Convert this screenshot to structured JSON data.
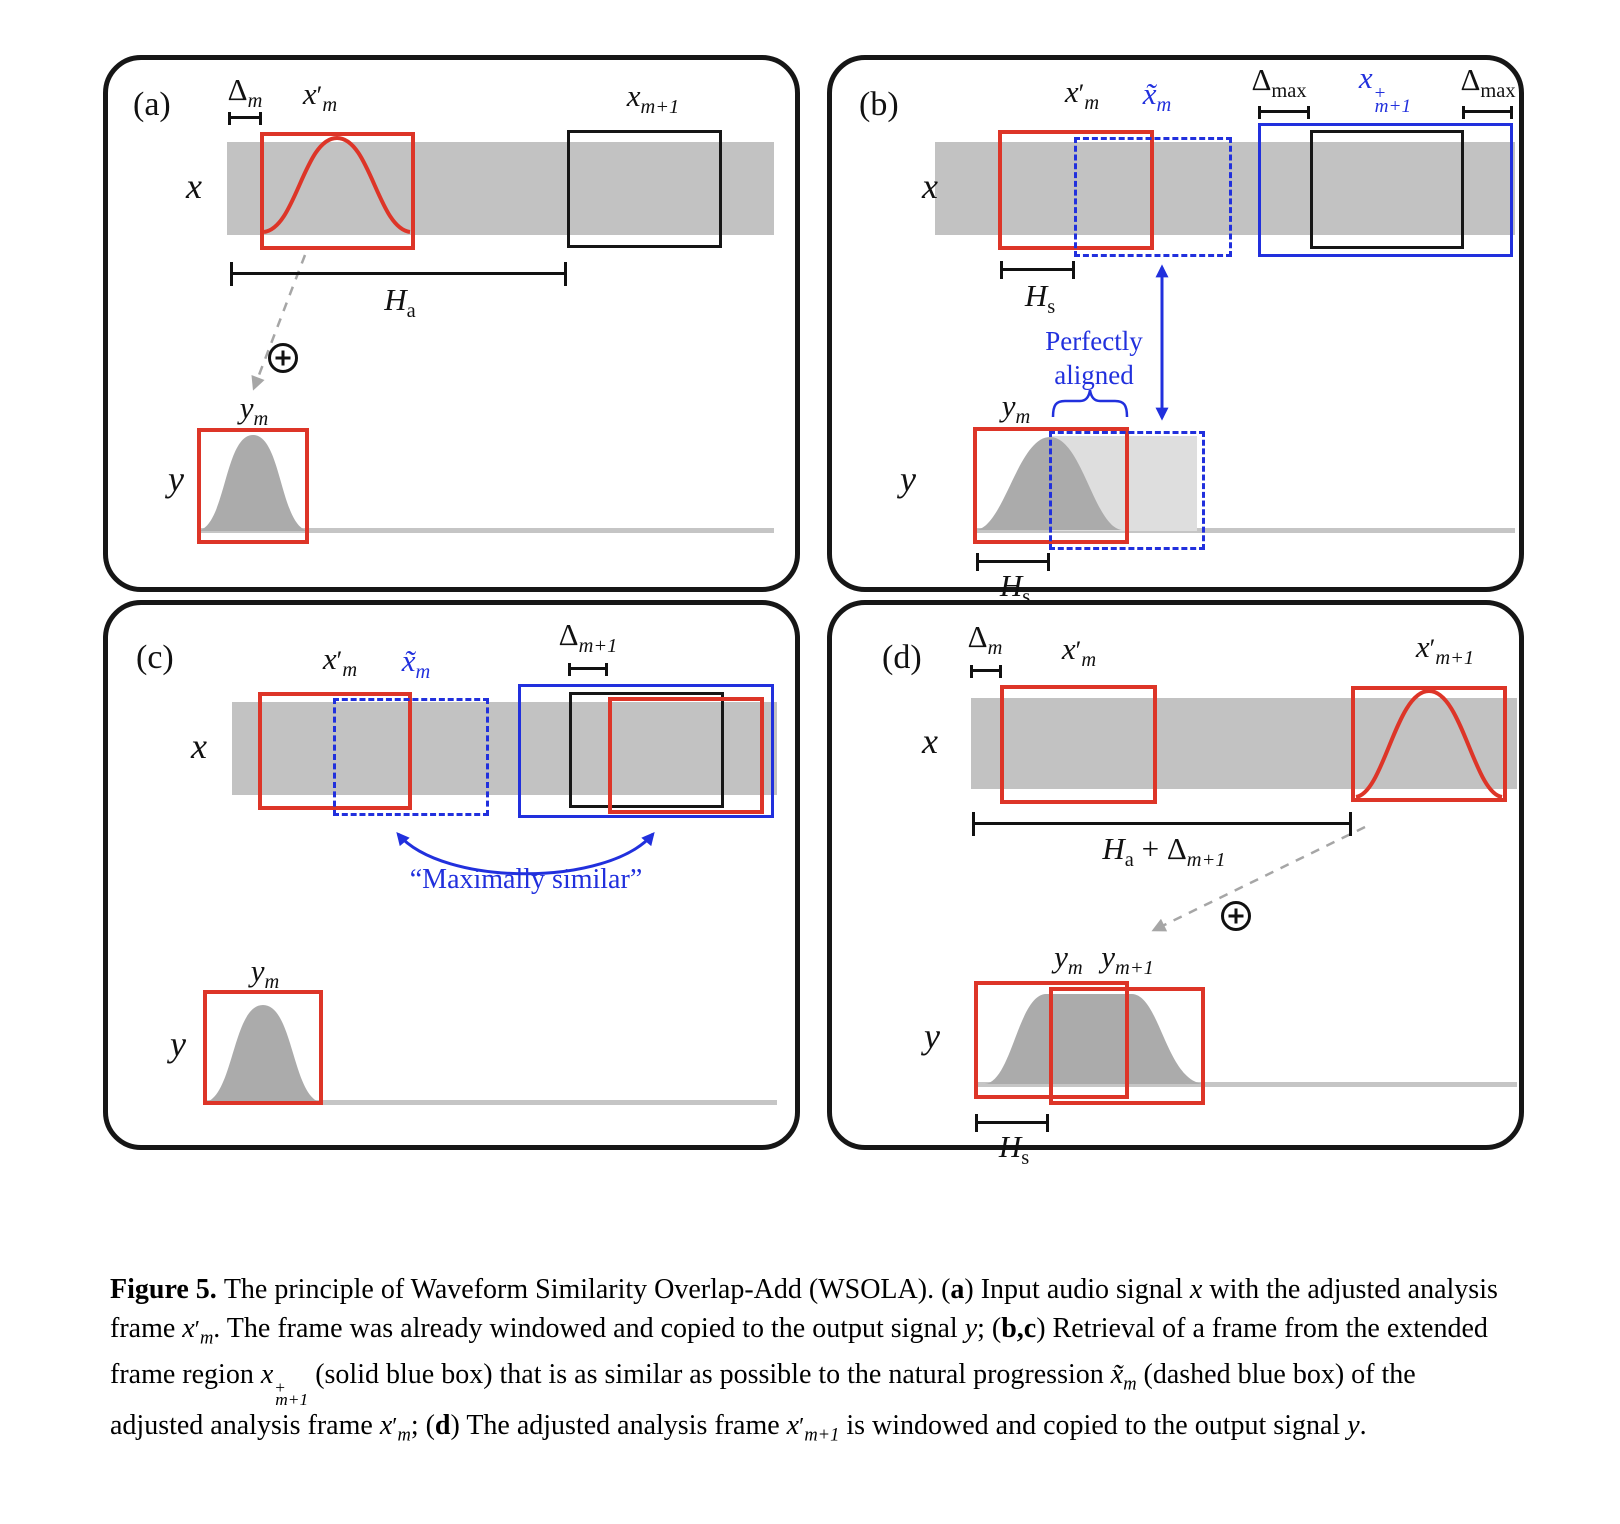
{
  "figure": {
    "type": "diagram-figure",
    "topic": "WSOLA time-scale modification principle"
  },
  "colors": {
    "red": "#dd3528",
    "blue": "#2130dd",
    "gray_bar": "#c2c2c2",
    "bell_gray": "#ababab",
    "light_gray": "#dedede",
    "baseline_gray": "#c5c5c5",
    "arrow_gray": "#a6a6a6",
    "ink": "#111111"
  },
  "panels": {
    "a": {
      "letter": "(a)"
    },
    "b": {
      "letter": "(b)"
    },
    "c": {
      "letter": "(c)"
    },
    "d": {
      "letter": "(d)"
    }
  },
  "labels": {
    "x": "x",
    "y": "y",
    "perfectly": "Perfectly",
    "aligned": "aligned",
    "maximally_similar": "“Maximally similar”",
    "delta_m": [
      {
        "t": "Δ"
      },
      {
        "t": "m",
        "s": "sub"
      }
    ],
    "delta_m1": [
      {
        "t": "Δ"
      },
      {
        "t": "m+1",
        "s": "sub"
      }
    ],
    "delta_max": [
      {
        "t": "Δ"
      },
      {
        "t": "max",
        "s": "subr"
      }
    ],
    "xm_prime": [
      {
        "t": "x",
        "s": "i"
      },
      {
        "t": "′",
        "s": "sup"
      },
      {
        "t": "m",
        "s": "sub"
      }
    ],
    "xm1_prime": [
      {
        "t": "x",
        "s": "i"
      },
      {
        "t": "′",
        "s": "sup"
      },
      {
        "t": "m+1",
        "s": "sub"
      }
    ],
    "xm1": [
      {
        "t": "x",
        "s": "i"
      },
      {
        "t": "m+1",
        "s": "sub"
      }
    ],
    "xm_tilde": [
      {
        "t": "x̃",
        "s": "i"
      },
      {
        "t": "m",
        "s": "sub"
      }
    ],
    "xm1_plus": [
      {
        "t": "x",
        "s": "i"
      },
      {
        "stack": [
          "+",
          "m+1"
        ]
      }
    ],
    "Ha": [
      {
        "t": "H",
        "s": "i"
      },
      {
        "t": "a",
        "s": "subr"
      }
    ],
    "Hs": [
      {
        "t": "H",
        "s": "i"
      },
      {
        "t": "s",
        "s": "subr"
      }
    ],
    "Ha_plus_dm1": [
      {
        "t": "H",
        "s": "i"
      },
      {
        "t": "a",
        "s": "subr"
      },
      {
        "t": " + "
      },
      {
        "t": "Δ"
      },
      {
        "t": "m+1",
        "s": "sub"
      }
    ],
    "ym": [
      {
        "t": "y",
        "s": "i"
      },
      {
        "t": "m",
        "s": "sub"
      }
    ],
    "ym_ym1": [
      {
        "t": "y",
        "s": "i"
      },
      {
        "t": "m",
        "s": "sub"
      },
      {
        "t": "",
        "s": "gap"
      },
      {
        "t": "y",
        "s": "i"
      },
      {
        "t": "m+1",
        "s": "sub"
      }
    ]
  },
  "caption": {
    "runs": [
      {
        "t": "Figure 5. ",
        "s": "b"
      },
      {
        "t": "The principle of Waveform Similarity Overlap-Add (WSOLA). ("
      },
      {
        "t": "a",
        "s": "b"
      },
      {
        "t": ") Input audio signal "
      },
      {
        "t": "x",
        "s": "i"
      },
      {
        "t": " with the adjusted analysis frame "
      },
      {
        "t": "x",
        "s": "i"
      },
      {
        "t": "′",
        "s": "sup"
      },
      {
        "t": "m",
        "s": "sub"
      },
      {
        "t": ". The frame was already windowed and copied to the output signal "
      },
      {
        "t": "y",
        "s": "i"
      },
      {
        "t": "; ("
      },
      {
        "t": "b,c",
        "s": "b"
      },
      {
        "t": ") Retrieval of a frame from the extended frame region "
      },
      {
        "t": "x",
        "s": "i"
      },
      {
        "stack": [
          "+",
          "m+1"
        ]
      },
      {
        "t": " (solid blue box) that is as similar as possible to the natural progression "
      },
      {
        "t": "x̃",
        "s": "i"
      },
      {
        "t": "m",
        "s": "sub"
      },
      {
        "t": " (dashed blue box) of the adjusted analysis frame "
      },
      {
        "t": "x",
        "s": "i"
      },
      {
        "t": "′",
        "s": "sup"
      },
      {
        "t": "m",
        "s": "sub"
      },
      {
        "t": "; ("
      },
      {
        "t": "d",
        "s": "b"
      },
      {
        "t": ") The adjusted analysis frame "
      },
      {
        "t": "x",
        "s": "i"
      },
      {
        "t": "′",
        "s": "sup"
      },
      {
        "t": "m+1",
        "s": "sub"
      },
      {
        "t": " is windowed and copied to the output signal "
      },
      {
        "t": "y",
        "s": "i"
      },
      {
        "t": "."
      }
    ]
  }
}
